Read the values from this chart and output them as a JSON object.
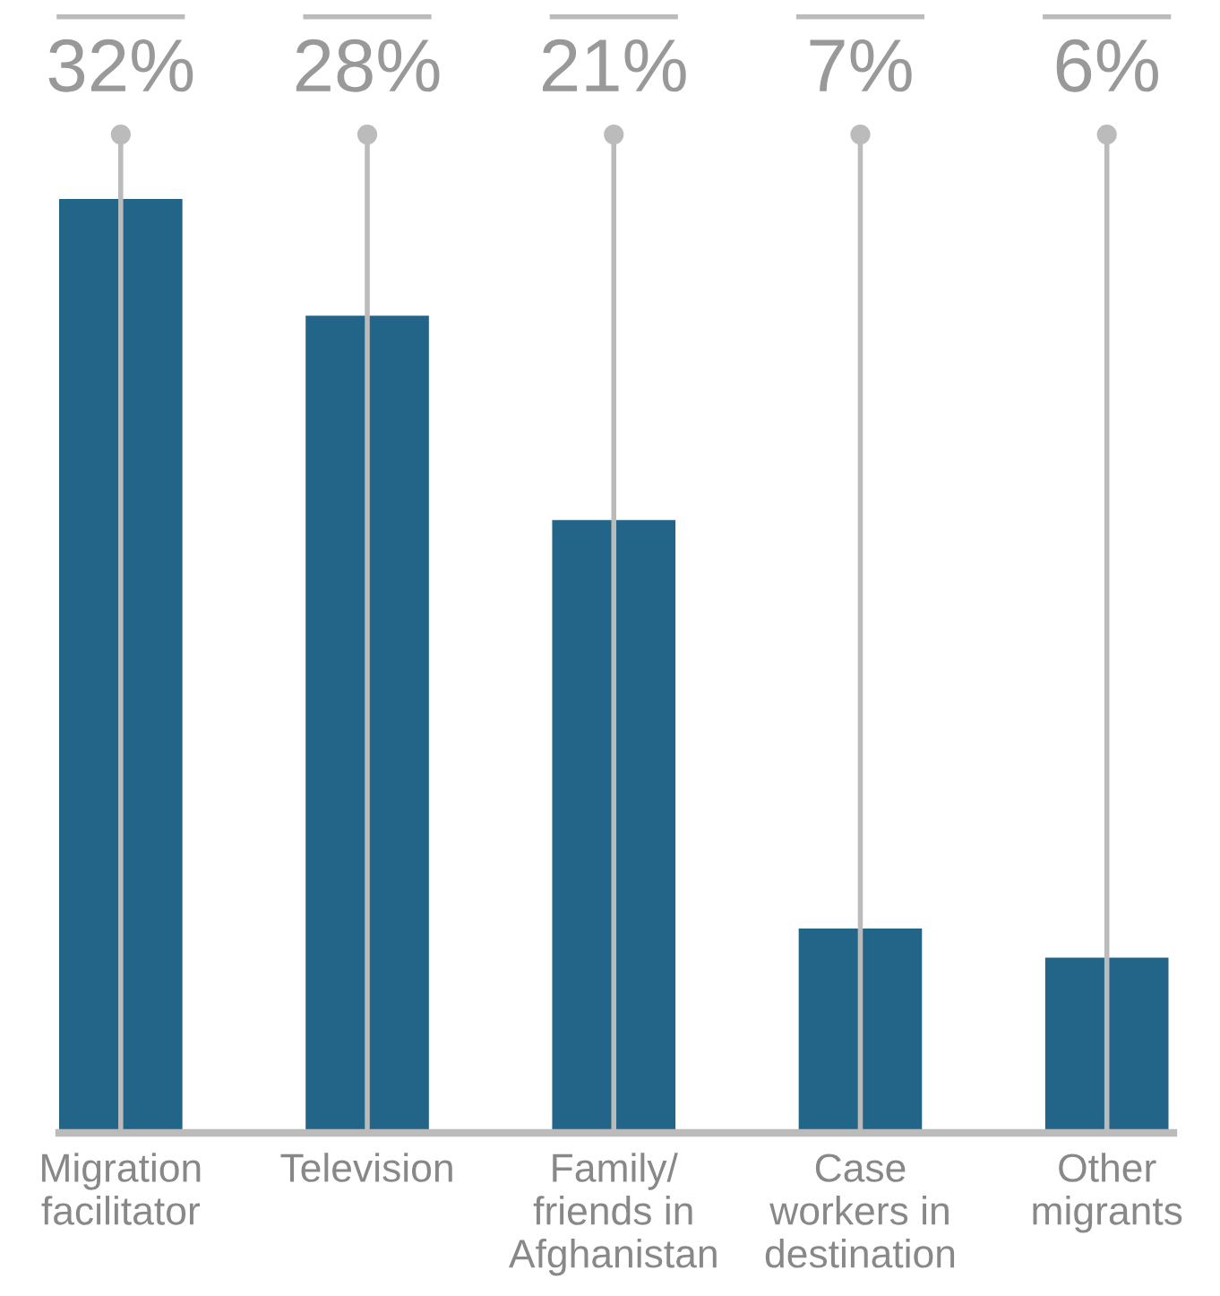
{
  "chart_data": {
    "type": "bar",
    "categories": [
      "Migration\nfacilitator",
      "Television",
      "Family/\nfriends in\nAfghanistan",
      "Case\nworkers in\ndestination",
      "Other\nmigrants"
    ],
    "values": [
      32,
      28,
      21,
      7,
      6
    ],
    "value_labels": [
      "32%",
      "28%",
      "21%",
      "7%",
      "6%"
    ],
    "color": "#226589",
    "grid": "x"
  }
}
